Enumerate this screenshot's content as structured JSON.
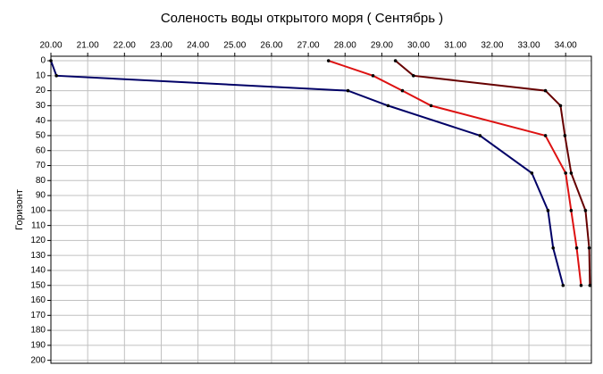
{
  "chart_data": {
    "type": "line",
    "title": "Соленость воды открытого моря    ( Сентябрь )",
    "y_label": "Горизонт",
    "xlim": [
      20,
      34.7
    ],
    "xticks": [
      {
        "value": 20,
        "label": "20.00"
      },
      {
        "value": 21,
        "label": "21.00"
      },
      {
        "value": 22,
        "label": "22.00"
      },
      {
        "value": 23,
        "label": "23.00"
      },
      {
        "value": 24,
        "label": "24.00"
      },
      {
        "value": 25,
        "label": "25.00"
      },
      {
        "value": 26,
        "label": "26.00"
      },
      {
        "value": 27,
        "label": "27.00"
      },
      {
        "value": 28,
        "label": "28.00"
      },
      {
        "value": 29,
        "label": "29.00"
      },
      {
        "value": 30,
        "label": "30.00"
      },
      {
        "value": 31,
        "label": "31.00"
      },
      {
        "value": 32,
        "label": "32.00"
      },
      {
        "value": 33,
        "label": "33.00"
      },
      {
        "value": 34,
        "label": "34.00"
      }
    ],
    "ylim": [
      -3,
      202
    ],
    "y_inverted": true,
    "yticks": [
      0,
      10,
      20,
      30,
      40,
      50,
      60,
      70,
      80,
      90,
      100,
      110,
      120,
      130,
      140,
      150,
      160,
      170,
      180,
      190,
      200
    ],
    "grid": true,
    "series": [
      {
        "color": "#000066",
        "x": [
          20.0,
          20.15,
          28.08,
          29.17,
          31.67,
          33.08,
          33.52,
          33.66,
          33.93
        ],
        "y": [
          0,
          10,
          20,
          30,
          50,
          75,
          100,
          125,
          150
        ]
      },
      {
        "color": "#dd1111",
        "x": [
          27.55,
          28.76,
          29.56,
          30.34,
          33.45,
          34.0,
          34.15,
          34.3,
          34.42
        ],
        "y": [
          0,
          10,
          20,
          30,
          50,
          75,
          100,
          125,
          150
        ]
      },
      {
        "color": "#660000",
        "x": [
          29.37,
          29.86,
          33.45,
          33.86,
          33.98,
          34.15,
          34.54,
          34.64,
          34.66
        ],
        "y": [
          0,
          10,
          20,
          30,
          50,
          75,
          100,
          125,
          150
        ]
      }
    ]
  }
}
